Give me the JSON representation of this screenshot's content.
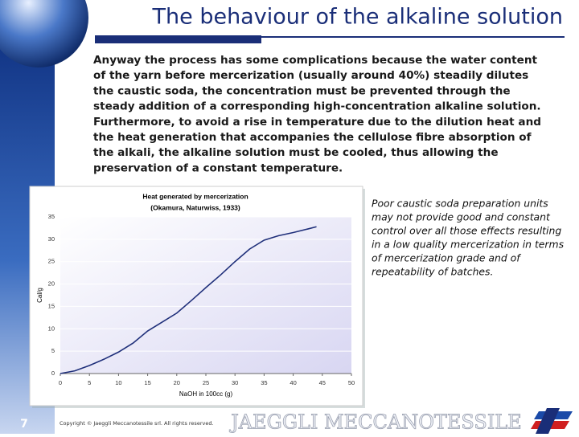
{
  "slide": {
    "title": "The behaviour of the alkaline solution",
    "body_lines": [
      "Anyway the process has some complications because the water content",
      "of the yarn before mercerization (usually around 40%) steadily dilutes",
      "the caustic soda, the concentration must be prevented through the",
      "steady addition of a corresponding high-concentration alkaline solution.",
      "Furthermore, to avoid a rise in temperature due to the dilution heat  and",
      "the heat generation that accompanies the cellulose fibre absorption of",
      "the alkali, the alkaline solution must be cooled, thus allowing the",
      "preservation of a constant temperature."
    ],
    "note_lines": [
      "Poor caustic soda preparation units",
      "may not provide good and constant",
      "control over all those effects resulting",
      "in a low quality mercerization in terms",
      "of mercerization grade and of",
      "repeatability of batches."
    ],
    "page_number": "7",
    "copyright": "Copyright © Jaeggli Meccanotessile srl. All rights reserved.",
    "brand": "JAEGGLI MECCANOTESSILE"
  },
  "chart_data": {
    "type": "line",
    "title": "Heat generated by mercerization",
    "subtitle": "(Okamura, Naturwiss, 1933)",
    "x_label": "NaOH in 100cc (g)",
    "y_label": "Cal/g",
    "x": [
      0,
      2.5,
      5,
      7.5,
      10,
      12.5,
      15,
      17.5,
      20,
      22.5,
      25,
      27.5,
      30,
      32.5,
      35,
      37.5,
      40,
      42.5,
      44
    ],
    "values": [
      0,
      0.6,
      1.8,
      3.2,
      4.8,
      6.8,
      9.5,
      11.5,
      13.5,
      16.3,
      19.2,
      22,
      25,
      27.8,
      29.8,
      30.8,
      31.5,
      32.3,
      32.8
    ],
    "color": "#1f2f7a",
    "xlim": [
      0,
      50
    ],
    "xticks": [
      0,
      5,
      10,
      15,
      20,
      25,
      30,
      35,
      40,
      45,
      50
    ],
    "ylim": [
      0,
      35
    ],
    "yticks": [
      0,
      5,
      10,
      15,
      20,
      25,
      30,
      35
    ],
    "grid": true
  }
}
